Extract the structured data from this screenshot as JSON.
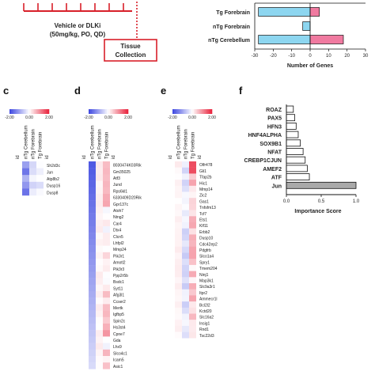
{
  "colors": {
    "protocol_red": "#d8202a",
    "bar_blue": "#8dd6f0",
    "bar_pink": "#f07aa0",
    "heat_blue": "#3c46e0",
    "heat_white": "#ffffff",
    "heat_red": "#e8203a",
    "importance_gray": "#a9a9a9"
  },
  "protocol": {
    "treatment_line1": "Vehicle or DLKi",
    "treatment_line2": "(50mg/kg, PO, QD)",
    "tissue_line1": "Tissue",
    "tissue_line2": "Collection"
  },
  "panel_letters": {
    "c": "c",
    "d": "d",
    "e": "e",
    "f": "f"
  },
  "genes_chart": {
    "type": "bar",
    "categories": [
      "Tg Forebrain",
      "nTg Forebrain",
      "nTg Cerebellum"
    ],
    "series": [
      {
        "values": [
          -28,
          -4,
          -28
        ]
      },
      {
        "values": [
          5,
          0,
          18
        ]
      }
    ],
    "xlim": [
      -30,
      30
    ],
    "xticks": [
      "-30",
      "-20",
      "-10",
      "0",
      "10",
      "20",
      "30"
    ],
    "xlabel": "Number of Genes"
  },
  "heatmap_c": {
    "scale": [
      "-2.00",
      "0.00",
      "2.00"
    ],
    "columns": [
      "nTg Cerebellum",
      "nTg Forebrain",
      "Tg Forebrain"
    ],
    "id_label": "id",
    "genes": [
      "Sh2d3c",
      "Jun",
      "Atp8b2",
      "Dusp16",
      "Dusp8"
    ]
  },
  "heatmap_d": {
    "scale": [
      "-2.00",
      "0.00",
      "2.00"
    ],
    "columns": [
      "nTg Cerebellum",
      "nTg Forebrain",
      "Tg Forebrain"
    ],
    "id_label": "id",
    "genes": [
      "8030474K03Rik",
      "Gm35025",
      "Atf3",
      "Jund",
      "Rps6kl1",
      "6330409D20Rik",
      "Gpr137c",
      "Atoh7",
      "Ntng2",
      "Car4",
      "Dtx4",
      "Clcn5",
      "Lhfpl2",
      "Mmp24",
      "Pik3r1",
      "Amotl2",
      "Pik3r3",
      "Ppp2r5b",
      "Bsdc1",
      "Syt11",
      "Afg3l1",
      "Ccser2",
      "Mertk",
      "Igfbp5",
      "Spin2c",
      "Hs3st4",
      "Cpne7",
      "Gda",
      "Lhx9",
      "Slco4c1",
      "Icam5",
      "Asic1"
    ]
  },
  "heatmap_e": {
    "scale": [
      "-2.00",
      "0.00",
      "2.00"
    ],
    "columns": [
      "nTg Cerebellum",
      "nTg Forebrain",
      "Tg Forebrain"
    ],
    "id_label": "id",
    "genes": [
      "Olfr478",
      "Gli1",
      "Tfap2b",
      "Hic1",
      "Mmp14",
      "Zic2",
      "Gas1",
      "Tnfsfm13",
      "Tcf7",
      "Ets1",
      "Klf11",
      "Erbb2",
      "Dusp10",
      "Cdc42ep2",
      "Pdgfrb",
      "Slco1a4",
      "Spry1",
      "Tmem204",
      "Ninj1",
      "Map3k1",
      "Slc9a3r1",
      "Itpr2",
      "Ammecr1l",
      "Bcl2l2",
      "Kctd20",
      "Slc16a2",
      "Insig1",
      "Rnd1",
      "Tsc22d3"
    ]
  },
  "importance_chart": {
    "type": "bar",
    "categories": [
      "ROAZ",
      "PAX5",
      "HFN3",
      "HNF4ALPHA",
      "SOX9B1",
      "NFAT",
      "CREBP1CJUN",
      "AMEF2",
      "ATF",
      "Jun"
    ],
    "values": [
      0.1,
      0.12,
      0.14,
      0.17,
      0.2,
      0.24,
      0.27,
      0.3,
      0.33,
      1.0
    ],
    "xlim": [
      0,
      1.0
    ],
    "xticks": [
      "0.0",
      "0.5",
      "1.0"
    ],
    "xlabel": "Importance Score"
  }
}
